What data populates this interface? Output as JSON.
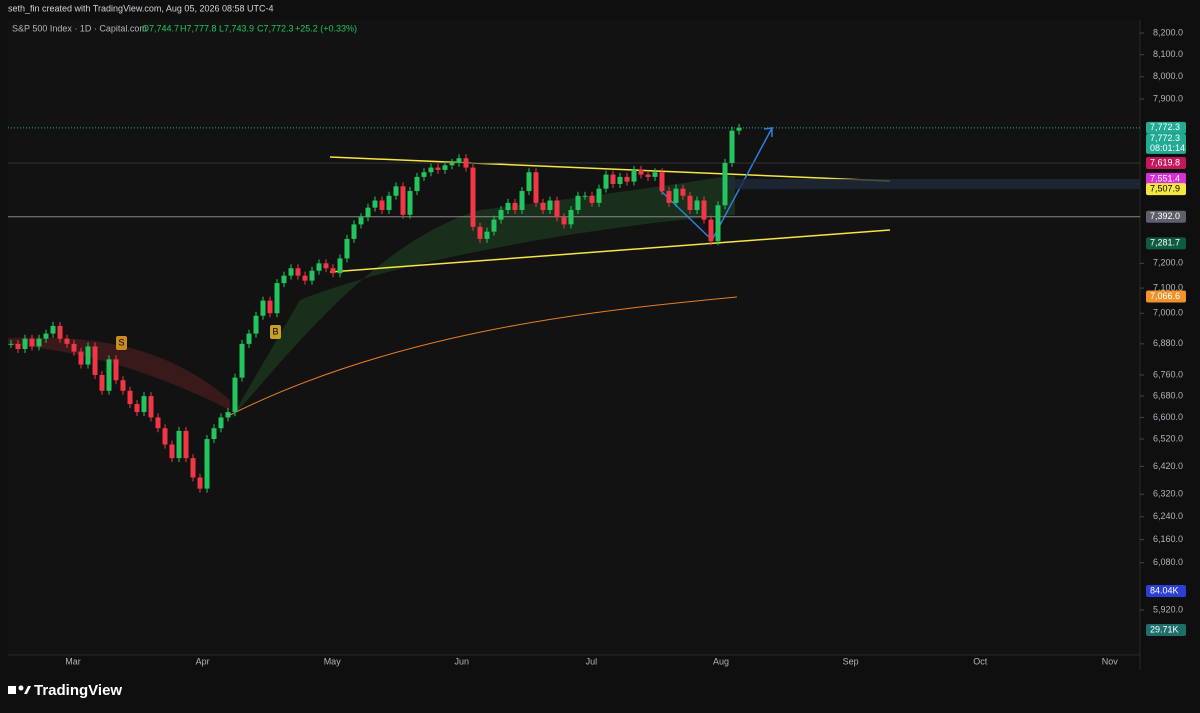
{
  "header": {
    "credit": "seth_fin created with TradingView.com, Aug 05, 2026 08:58 UTC-4",
    "symbol": "S&P 500 Index · 1D · Capital.com",
    "open": "O7,744.7",
    "high": "H7,777.8",
    "low": "L7,743.9",
    "close": "C7,772.3",
    "change": "+25.2 (+0.33%)"
  },
  "price_axis": [
    {
      "value": 8200,
      "label": "8,200.0"
    },
    {
      "value": 8100,
      "label": "8,100.0"
    },
    {
      "value": 8000,
      "label": "8,000.0"
    },
    {
      "value": 7900,
      "label": "7,900.0"
    },
    {
      "value": 7200,
      "label": "7,200.0"
    },
    {
      "value": 7100,
      "label": "7,100.0"
    },
    {
      "value": 7000,
      "label": "7,000.0"
    },
    {
      "value": 6880,
      "label": "6,880.0"
    },
    {
      "value": 6760,
      "label": "6,760.0"
    },
    {
      "value": 6680,
      "label": "6,680.0"
    },
    {
      "value": 6600,
      "label": "6,600.0"
    },
    {
      "value": 6520,
      "label": "6,520.0"
    },
    {
      "value": 6420,
      "label": "6,420.0"
    },
    {
      "value": 6320,
      "label": "6,320.0"
    },
    {
      "value": 6240,
      "label": "6,240.0"
    },
    {
      "value": 6160,
      "label": "6,160.0"
    },
    {
      "value": 6080,
      "label": "6,080.0"
    },
    {
      "value": 5920,
      "label": "5,920.0"
    }
  ],
  "price_tags": [
    {
      "value": 7772.3,
      "label": "7,772.3",
      "color": "#22ab94"
    },
    {
      "value": 7619.8,
      "label": "7,619.8",
      "color": "#c2185b"
    },
    {
      "value": 7551.4,
      "label": "7,551.4",
      "color": "#d62fd6"
    },
    {
      "value": 7507.9,
      "label": "7,507.9",
      "color": "#f5e642"
    },
    {
      "value": 7392,
      "label": "7,392.0",
      "color": "#5d606b"
    },
    {
      "value": 7281.7,
      "label": "7,281.7",
      "color": "#0d5c3f"
    },
    {
      "value": 7066.6,
      "label": "7,066.6",
      "color": "#f0932b"
    }
  ],
  "countdown": {
    "price": "7,772.3",
    "time": "08:01:14"
  },
  "volume_tags": [
    {
      "label": "84.04K",
      "color": "#2a3fd6"
    },
    {
      "label": "29.71K",
      "color": "#1e6f6a"
    }
  ],
  "time_axis": [
    "Mar",
    "Apr",
    "May",
    "Jun",
    "Jul",
    "Aug",
    "Sep",
    "Oct",
    "Nov"
  ],
  "badges": [
    "S",
    "B"
  ],
  "price_series": {
    "closes": [
      6880,
      6860,
      6900,
      6870,
      6900,
      6920,
      6950,
      6900,
      6880,
      6850,
      6800,
      6870,
      6760,
      6700,
      6820,
      6740,
      6700,
      6650,
      6620,
      6680,
      6600,
      6560,
      6500,
      6450,
      6550,
      6450,
      6380,
      6340,
      6520,
      6560,
      6600,
      6620,
      6750,
      6880,
      6920,
      6990,
      7050,
      7000,
      7120,
      7150,
      7180,
      7150,
      7130,
      7170,
      7200,
      7180,
      7160,
      7220,
      7300,
      7360,
      7390,
      7430,
      7460,
      7420,
      7480,
      7520,
      7400,
      7500,
      7560,
      7580,
      7600,
      7590,
      7610,
      7620,
      7640,
      7600,
      7350,
      7300,
      7330,
      7380,
      7420,
      7450,
      7420,
      7500,
      7580,
      7450,
      7420,
      7460,
      7390,
      7360,
      7420,
      7480,
      7480,
      7450,
      7510,
      7570,
      7530,
      7560,
      7540,
      7590,
      7570,
      7560,
      7580,
      7500,
      7450,
      7510,
      7480,
      7420,
      7460,
      7380,
      7290,
      7440,
      7620,
      7760,
      7772.3
    ],
    "up_color": "#22c55e",
    "down_color": "#f23645"
  },
  "brand": "TradingView"
}
